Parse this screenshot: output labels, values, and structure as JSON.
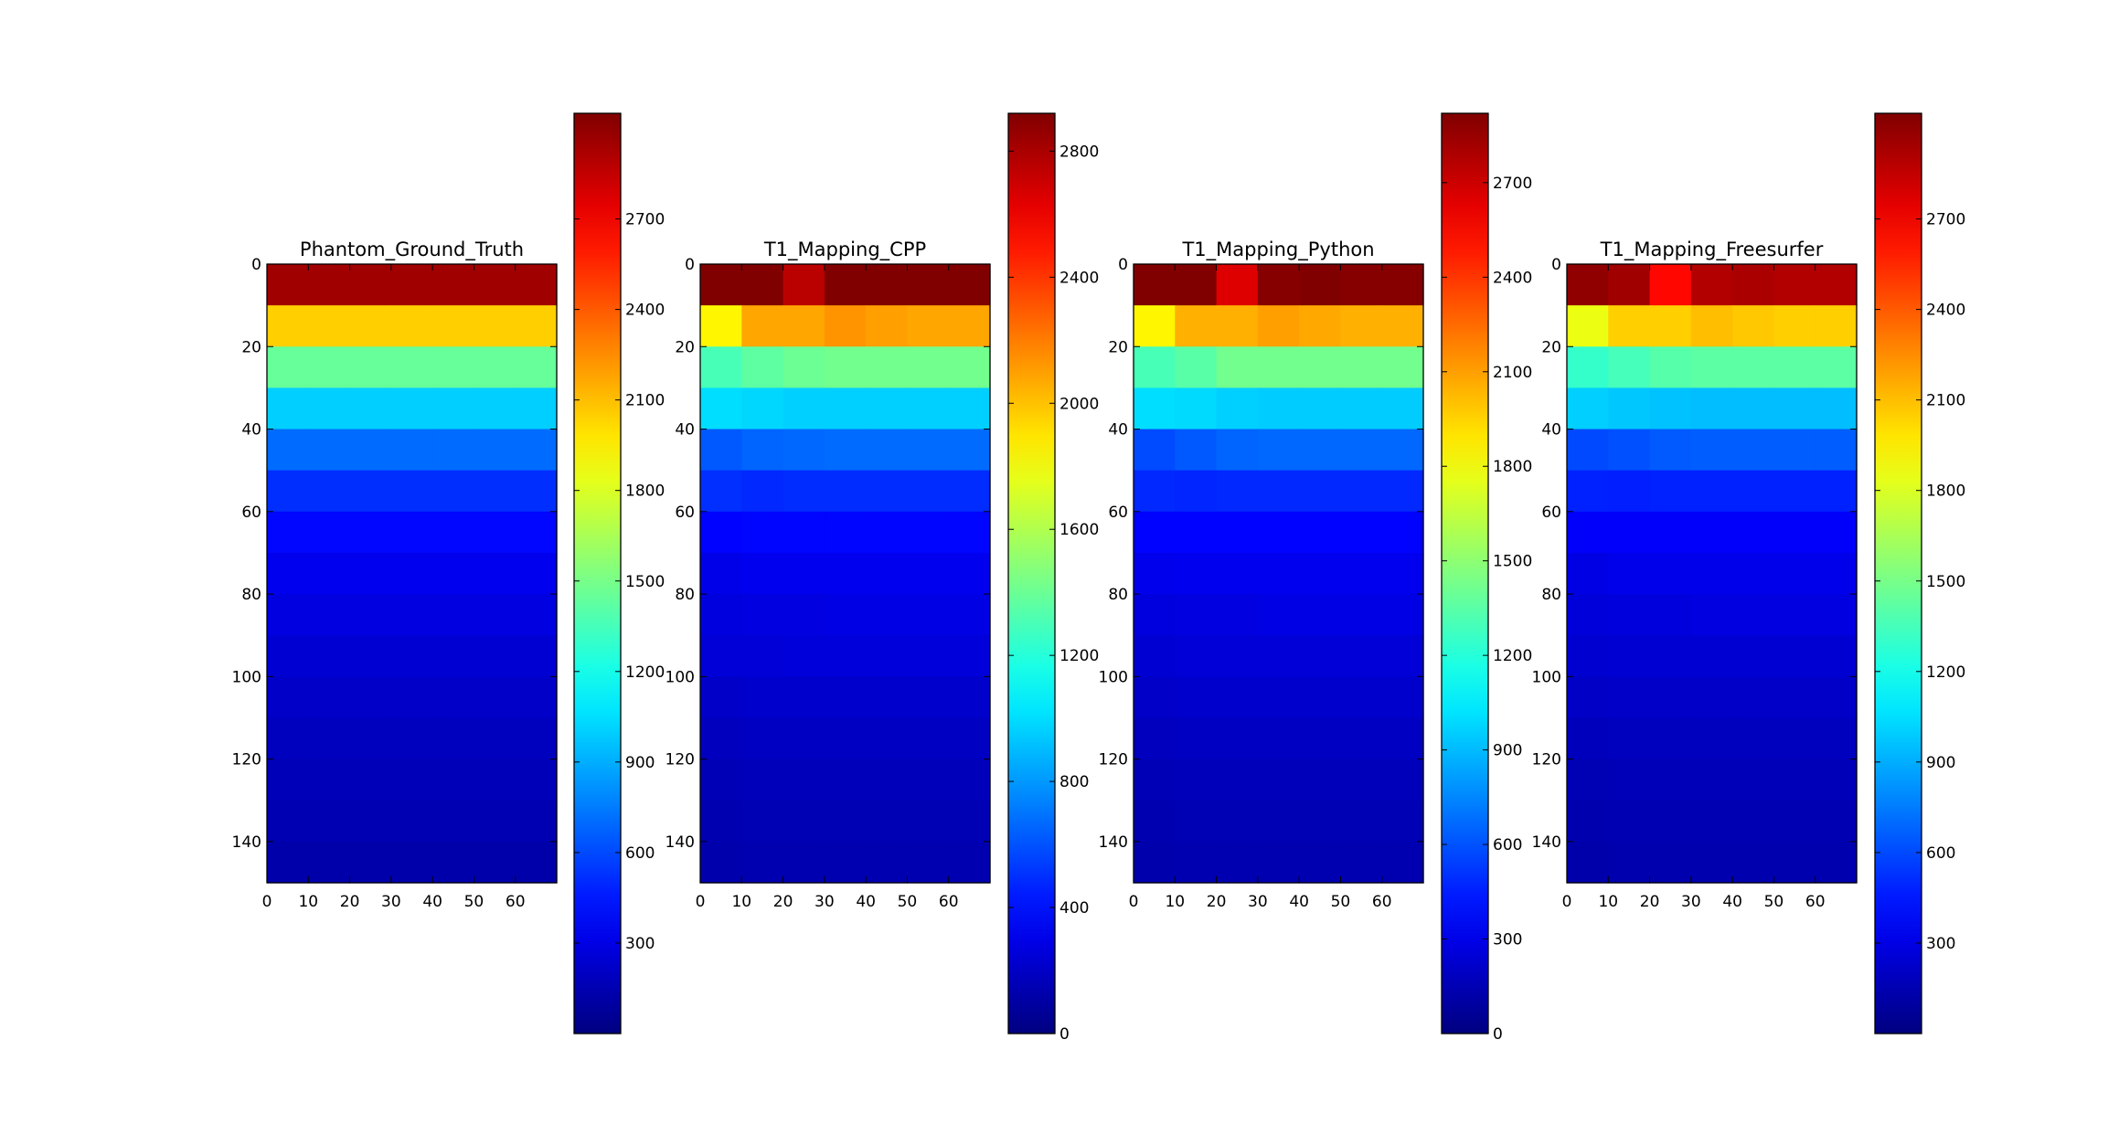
{
  "figure": {
    "background": "#ffffff",
    "colormap": "jet"
  },
  "chart_data": [
    {
      "type": "heatmap",
      "title": "Phantom_Ground_Truth",
      "x_range": [
        0,
        70
      ],
      "y_range": [
        0,
        150
      ],
      "y_inverted": true,
      "x_ticks": [
        0,
        10,
        20,
        30,
        40,
        50,
        60
      ],
      "y_ticks": [
        0,
        20,
        40,
        60,
        80,
        100,
        120,
        140
      ],
      "block_size": [
        10,
        10
      ],
      "values": [
        [
          2950,
          2950,
          2950,
          2950,
          2950,
          2950,
          2950
        ],
        [
          2050,
          2050,
          2050,
          2050,
          2050,
          2050,
          2050
        ],
        [
          1450,
          1450,
          1450,
          1450,
          1450,
          1450,
          1450
        ],
        [
          1000,
          1000,
          1000,
          1000,
          1000,
          1000,
          1000
        ],
        [
          700,
          700,
          700,
          700,
          700,
          700,
          700
        ],
        [
          520,
          520,
          520,
          520,
          520,
          520,
          520
        ],
        [
          400,
          400,
          400,
          400,
          400,
          400,
          400
        ],
        [
          330,
          330,
          330,
          330,
          330,
          330,
          330
        ],
        [
          290,
          290,
          290,
          290,
          290,
          290,
          290
        ],
        [
          250,
          250,
          250,
          250,
          250,
          250,
          250
        ],
        [
          220,
          220,
          220,
          220,
          220,
          220,
          220
        ],
        [
          190,
          190,
          190,
          190,
          190,
          190,
          190
        ],
        [
          170,
          170,
          170,
          170,
          170,
          170,
          170
        ],
        [
          150,
          150,
          150,
          150,
          150,
          150,
          150
        ],
        [
          130,
          130,
          130,
          130,
          130,
          130,
          130
        ]
      ],
      "colorbar": {
        "min": 0,
        "max": 3050,
        "ticks": [
          300,
          600,
          900,
          1200,
          1500,
          1800,
          2100,
          2400,
          2700
        ]
      }
    },
    {
      "type": "heatmap",
      "title": "T1_Mapping_CPP",
      "x_range": [
        0,
        70
      ],
      "y_range": [
        0,
        150
      ],
      "y_inverted": true,
      "x_ticks": [
        0,
        10,
        20,
        30,
        40,
        50,
        60
      ],
      "y_ticks": [
        0,
        20,
        40,
        60,
        80,
        100,
        120,
        140
      ],
      "block_size": [
        10,
        10
      ],
      "values": [
        [
          3150,
          3050,
          2750,
          2950,
          3000,
          2980,
          2980
        ],
        [
          1850,
          2080,
          2080,
          2130,
          2100,
          2080,
          2080
        ],
        [
          1300,
          1360,
          1400,
          1420,
          1420,
          1420,
          1420
        ],
        [
          1000,
          980,
          960,
          960,
          960,
          960,
          960
        ],
        [
          620,
          650,
          660,
          670,
          670,
          670,
          670
        ],
        [
          500,
          480,
          490,
          490,
          490,
          490,
          490
        ],
        [
          370,
          380,
          380,
          380,
          380,
          380,
          380
        ],
        [
          300,
          320,
          320,
          320,
          320,
          320,
          320
        ],
        [
          270,
          280,
          280,
          290,
          290,
          290,
          290
        ],
        [
          250,
          250,
          260,
          260,
          260,
          260,
          260
        ],
        [
          210,
          220,
          220,
          220,
          220,
          220,
          220
        ],
        [
          180,
          190,
          190,
          190,
          190,
          190,
          190
        ],
        [
          160,
          170,
          170,
          170,
          170,
          170,
          170
        ],
        [
          140,
          150,
          150,
          150,
          150,
          150,
          150
        ],
        [
          130,
          140,
          140,
          140,
          140,
          140,
          140
        ]
      ],
      "colorbar": {
        "min": 0,
        "max": 2920,
        "ticks": [
          0,
          400,
          800,
          1200,
          1600,
          2000,
          2400,
          2800
        ]
      }
    },
    {
      "type": "heatmap",
      "title": "T1_Mapping_Python",
      "x_range": [
        0,
        70
      ],
      "y_range": [
        0,
        150
      ],
      "y_inverted": true,
      "x_ticks": [
        0,
        10,
        20,
        30,
        40,
        50,
        60
      ],
      "y_ticks": [
        0,
        20,
        40,
        60,
        80,
        100,
        120,
        140
      ],
      "block_size": [
        10,
        10
      ],
      "values": [
        [
          3050,
          2950,
          2650,
          2900,
          2920,
          2900,
          2900
        ],
        [
          1850,
          2050,
          2050,
          2100,
          2070,
          2050,
          2050
        ],
        [
          1300,
          1350,
          1420,
          1420,
          1420,
          1420,
          1420
        ],
        [
          1000,
          990,
          960,
          950,
          950,
          950,
          950
        ],
        [
          580,
          620,
          650,
          660,
          660,
          660,
          660
        ],
        [
          480,
          470,
          480,
          480,
          480,
          480,
          480
        ],
        [
          370,
          370,
          370,
          370,
          370,
          370,
          370
        ],
        [
          310,
          320,
          320,
          320,
          320,
          320,
          320
        ],
        [
          270,
          280,
          280,
          290,
          290,
          290,
          290
        ],
        [
          240,
          250,
          250,
          250,
          250,
          250,
          250
        ],
        [
          210,
          220,
          220,
          220,
          220,
          220,
          220
        ],
        [
          180,
          190,
          190,
          190,
          190,
          190,
          190
        ],
        [
          160,
          170,
          170,
          170,
          170,
          170,
          170
        ],
        [
          140,
          150,
          150,
          150,
          150,
          150,
          150
        ],
        [
          130,
          140,
          140,
          140,
          140,
          140,
          140
        ]
      ],
      "colorbar": {
        "min": 0,
        "max": 2920,
        "ticks": [
          0,
          300,
          600,
          900,
          1200,
          1500,
          1800,
          2100,
          2400,
          2700
        ]
      }
    },
    {
      "type": "heatmap",
      "title": "T1_Mapping_Freesurfer",
      "x_range": [
        0,
        70
      ],
      "y_range": [
        0,
        150
      ],
      "y_inverted": true,
      "x_ticks": [
        0,
        10,
        20,
        30,
        40,
        50,
        60
      ],
      "y_ticks": [
        0,
        20,
        40,
        60,
        80,
        100,
        120,
        140
      ],
      "block_size": [
        10,
        10
      ],
      "values": [
        [
          3000,
          2950,
          2650,
          2900,
          2920,
          2900,
          2900
        ],
        [
          1850,
          2050,
          2050,
          2100,
          2070,
          2050,
          2050
        ],
        [
          1300,
          1350,
          1400,
          1420,
          1420,
          1420,
          1420
        ],
        [
          1000,
          980,
          960,
          950,
          950,
          950,
          950
        ],
        [
          600,
          620,
          650,
          660,
          660,
          660,
          660
        ],
        [
          480,
          470,
          480,
          480,
          480,
          480,
          480
        ],
        [
          370,
          370,
          370,
          370,
          370,
          370,
          370
        ],
        [
          300,
          320,
          320,
          320,
          320,
          320,
          320
        ],
        [
          270,
          280,
          280,
          290,
          290,
          290,
          290
        ],
        [
          240,
          250,
          250,
          250,
          250,
          250,
          250
        ],
        [
          210,
          220,
          220,
          220,
          220,
          220,
          220
        ],
        [
          180,
          190,
          190,
          190,
          190,
          190,
          190
        ],
        [
          160,
          170,
          170,
          170,
          170,
          170,
          170
        ],
        [
          140,
          150,
          150,
          150,
          150,
          150,
          150
        ],
        [
          130,
          140,
          140,
          140,
          140,
          140,
          140
        ]
      ],
      "colorbar": {
        "min": 0,
        "max": 3050,
        "ticks": [
          300,
          600,
          900,
          1200,
          1500,
          1800,
          2100,
          2400,
          2700
        ]
      }
    }
  ]
}
